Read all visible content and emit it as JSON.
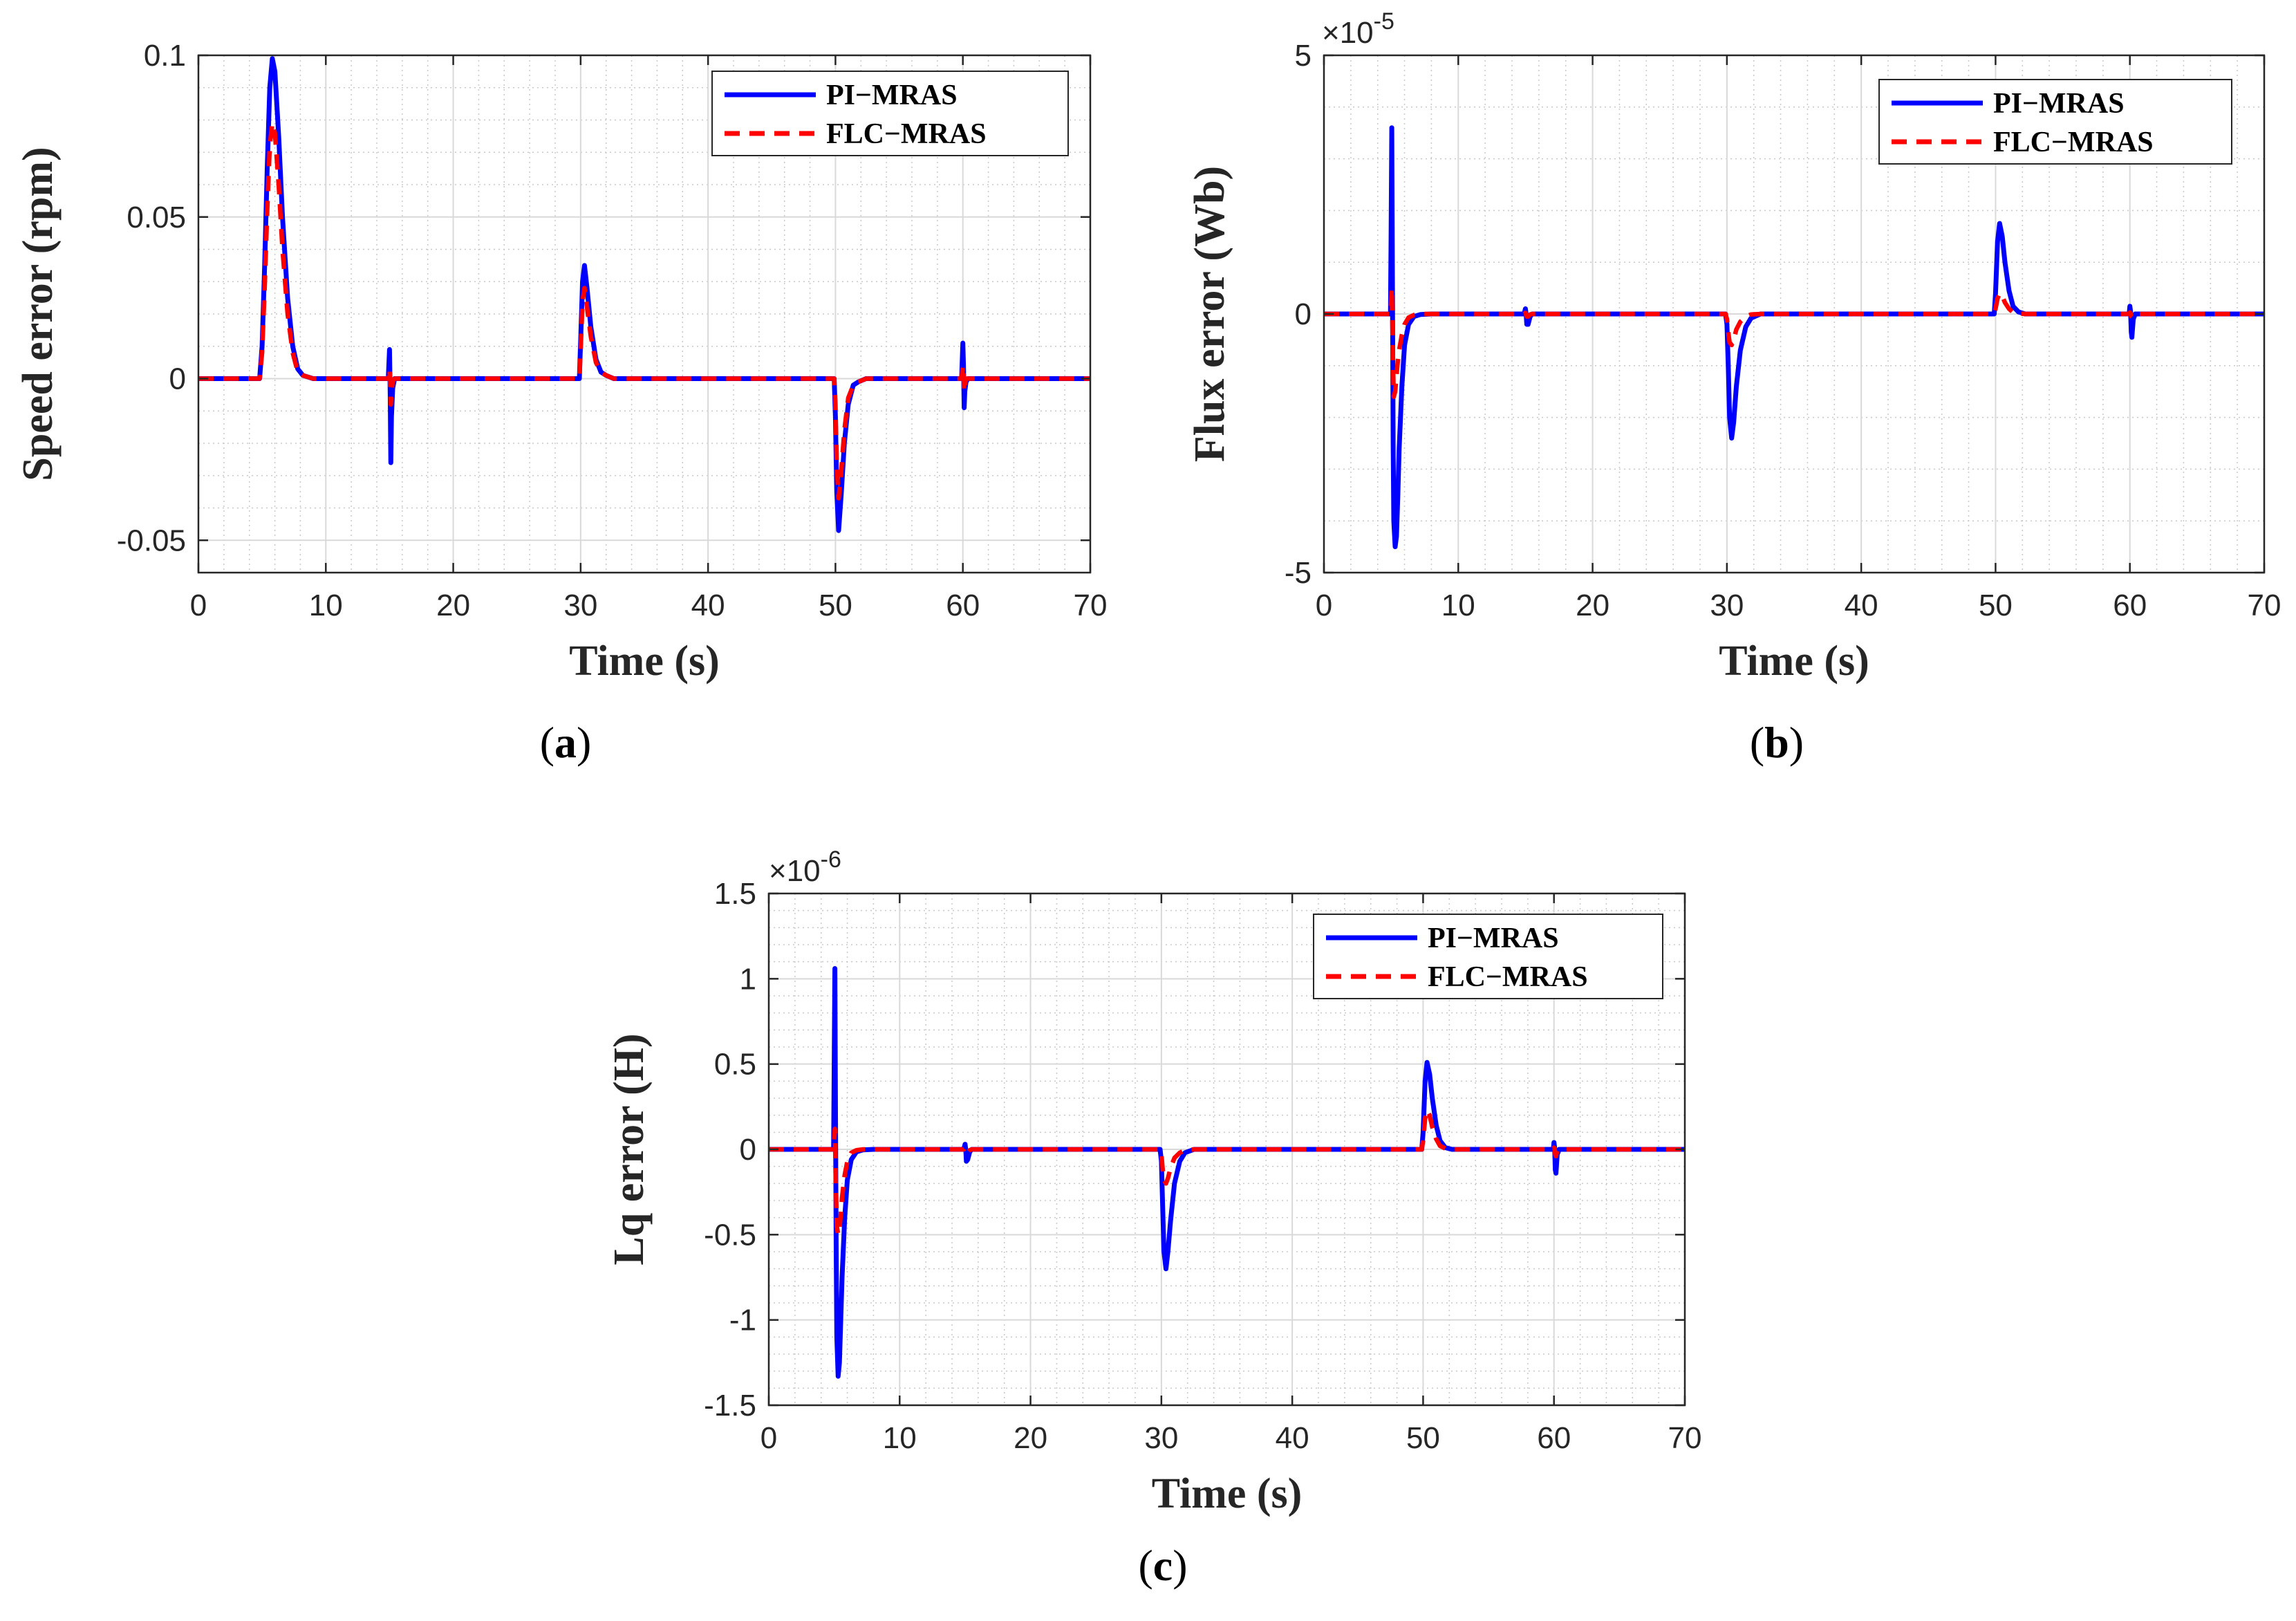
{
  "colors": {
    "pi_mras": "#0000ff",
    "flc_mras": "#ff0000",
    "axis": "#262626",
    "grid": "#c8c8c8"
  },
  "chart_data": [
    {
      "id": "a",
      "type": "line",
      "caption_letter": "a",
      "xlabel": "Time (s)",
      "ylabel": "Speed error (rpm)",
      "exponent_label": "",
      "xlim": [
        0,
        70
      ],
      "ylim": [
        -0.06,
        0.1
      ],
      "xticks": [
        0,
        10,
        20,
        30,
        40,
        50,
        60,
        70
      ],
      "xtick_labels": [
        "0",
        "10",
        "20",
        "30",
        "40",
        "50",
        "60",
        "70"
      ],
      "yticks": [
        -0.05,
        0,
        0.05,
        0.1
      ],
      "ytick_labels": [
        "-0.05",
        "0",
        "0.05",
        "0.1"
      ],
      "legend": [
        "PI−MRAS",
        "FLC−MRAS"
      ],
      "legend_position": "top-right",
      "series": [
        {
          "name": "PI-MRAS",
          "style": "solid",
          "x": [
            0,
            4.8,
            5.0,
            5.2,
            5.4,
            5.6,
            5.8,
            6.0,
            6.3,
            6.6,
            7.0,
            7.4,
            7.8,
            8.2,
            9.0,
            14.9,
            15.0,
            15.05,
            15.1,
            15.15,
            15.25,
            15.4,
            29.9,
            30.0,
            30.15,
            30.3,
            30.5,
            30.8,
            31.2,
            31.6,
            32.0,
            32.6,
            49.9,
            50.0,
            50.1,
            50.25,
            50.45,
            50.7,
            51.0,
            51.4,
            51.8,
            52.4,
            59.9,
            60.0,
            60.05,
            60.1,
            60.15,
            60.25,
            60.4,
            70
          ],
          "y": [
            0,
            0,
            0.01,
            0.035,
            0.065,
            0.09,
            0.099,
            0.095,
            0.075,
            0.05,
            0.025,
            0.01,
            0.003,
            0.001,
            0,
            0,
            0.009,
            -0.005,
            -0.026,
            -0.012,
            -0.003,
            0,
            0,
            0.012,
            0.03,
            0.035,
            0.028,
            0.016,
            0.006,
            0.002,
            0.001,
            0,
            0,
            -0.012,
            -0.035,
            -0.047,
            -0.036,
            -0.02,
            -0.008,
            -0.002,
            -0.001,
            0,
            0,
            0.011,
            0.004,
            -0.009,
            -0.004,
            -0.001,
            0,
            0
          ]
        },
        {
          "name": "FLC-MRAS",
          "style": "dashed",
          "x": [
            0,
            4.8,
            5.0,
            5.2,
            5.4,
            5.6,
            5.8,
            6.0,
            6.3,
            6.6,
            7.0,
            7.4,
            7.8,
            8.2,
            9.0,
            14.9,
            15.0,
            15.05,
            15.1,
            15.15,
            15.25,
            15.4,
            29.9,
            30.0,
            30.15,
            30.3,
            30.5,
            30.8,
            31.2,
            31.6,
            32.0,
            32.6,
            49.9,
            50.0,
            50.1,
            50.25,
            50.45,
            50.7,
            51.0,
            51.4,
            51.8,
            52.4,
            59.9,
            60.0,
            60.05,
            60.1,
            60.15,
            60.25,
            60.4,
            70
          ],
          "y": [
            0,
            0,
            0.008,
            0.028,
            0.052,
            0.072,
            0.079,
            0.076,
            0.06,
            0.04,
            0.02,
            0.008,
            0.002,
            0.001,
            0,
            0,
            0.003,
            -0.002,
            -0.008,
            -0.004,
            -0.001,
            0,
            0,
            0.009,
            0.024,
            0.028,
            0.022,
            0.013,
            0.005,
            0.002,
            0.001,
            0,
            0,
            -0.008,
            -0.027,
            -0.037,
            -0.029,
            -0.016,
            -0.006,
            -0.002,
            -0.001,
            0,
            0,
            0.004,
            0.001,
            -0.004,
            -0.002,
            0,
            0,
            0
          ]
        }
      ]
    },
    {
      "id": "b",
      "type": "line",
      "caption_letter": "b",
      "xlabel": "Time (s)",
      "ylabel": "Flux error (Wb)",
      "exponent_label": "×10",
      "exponent_power": "-5",
      "xlim": [
        0,
        70
      ],
      "ylim": [
        -5,
        5
      ],
      "xticks": [
        0,
        10,
        20,
        30,
        40,
        50,
        60,
        70
      ],
      "xtick_labels": [
        "0",
        "10",
        "20",
        "30",
        "40",
        "50",
        "60",
        "70"
      ],
      "yticks": [
        -5,
        0,
        5
      ],
      "ytick_labels": [
        "-5",
        "0",
        "5"
      ],
      "legend": [
        "PI−MRAS",
        "FLC−MRAS"
      ],
      "legend_position": "top-right",
      "series": [
        {
          "name": "PI-MRAS",
          "style": "solid",
          "x": [
            0,
            4.95,
            5.0,
            5.05,
            5.1,
            5.15,
            5.2,
            5.3,
            5.4,
            5.5,
            5.6,
            5.8,
            6.0,
            6.3,
            6.7,
            7.2,
            8.0,
            14.9,
            15.0,
            15.05,
            15.1,
            15.2,
            15.35,
            15.5,
            29.9,
            30.0,
            30.1,
            30.2,
            30.35,
            30.5,
            30.7,
            31.0,
            31.4,
            31.8,
            32.5,
            49.9,
            50.0,
            50.15,
            50.3,
            50.5,
            50.7,
            51.0,
            51.3,
            51.7,
            52.2,
            59.95,
            60.0,
            60.05,
            60.1,
            60.15,
            60.25,
            60.4,
            70
          ],
          "y": [
            0,
            0,
            1.5,
            3.6,
            0.5,
            -2.5,
            -4.0,
            -4.5,
            -4.3,
            -3.5,
            -2.6,
            -1.4,
            -0.6,
            -0.2,
            -0.05,
            -0.01,
            0,
            0,
            0.1,
            0,
            -0.2,
            -0.2,
            -0.05,
            0,
            0,
            -0.2,
            -1.0,
            -2.0,
            -2.4,
            -2.1,
            -1.4,
            -0.7,
            -0.25,
            -0.08,
            0,
            0,
            0.4,
            1.4,
            1.75,
            1.5,
            1.0,
            0.45,
            0.15,
            0.04,
            0,
            0,
            0.15,
            0.05,
            -0.35,
            -0.45,
            -0.1,
            0,
            0
          ]
        },
        {
          "name": "FLC-MRAS",
          "style": "dashed",
          "x": [
            0,
            4.95,
            5.0,
            5.05,
            5.1,
            5.15,
            5.2,
            5.3,
            5.4,
            5.5,
            5.6,
            5.8,
            6.0,
            6.3,
            6.7,
            7.2,
            8.0,
            14.9,
            15.0,
            15.05,
            15.1,
            15.2,
            15.35,
            15.5,
            29.9,
            30.0,
            30.1,
            30.2,
            30.35,
            30.5,
            30.7,
            31.0,
            31.4,
            31.8,
            32.5,
            49.9,
            50.0,
            50.15,
            50.3,
            50.5,
            50.7,
            51.0,
            51.3,
            51.7,
            52.2,
            59.95,
            60.0,
            60.05,
            60.1,
            60.15,
            60.25,
            60.4,
            70
          ],
          "y": [
            0,
            0,
            0.2,
            0.5,
            -0.3,
            -1.1,
            -1.6,
            -1.5,
            -1.2,
            -0.9,
            -0.7,
            -0.4,
            -0.2,
            -0.07,
            -0.02,
            0,
            0,
            0,
            0.02,
            0,
            -0.05,
            -0.05,
            -0.01,
            0,
            0,
            -0.1,
            -0.35,
            -0.55,
            -0.6,
            -0.5,
            -0.3,
            -0.15,
            -0.05,
            -0.01,
            0,
            0,
            0.1,
            0.3,
            0.4,
            0.35,
            0.22,
            0.1,
            0.03,
            0.01,
            0,
            0,
            0.03,
            0.01,
            -0.05,
            -0.06,
            -0.01,
            0,
            0
          ]
        }
      ]
    },
    {
      "id": "c",
      "type": "line",
      "caption_letter": "c",
      "xlabel": "Time (s)",
      "ylabel": "Lq error (H)",
      "exponent_label": "×10",
      "exponent_power": "-6",
      "xlim": [
        0,
        70
      ],
      "ylim": [
        -1.5,
        1.5
      ],
      "xticks": [
        0,
        10,
        20,
        30,
        40,
        50,
        60,
        70
      ],
      "xtick_labels": [
        "0",
        "10",
        "20",
        "30",
        "40",
        "50",
        "60",
        "70"
      ],
      "yticks": [
        -1.5,
        -1,
        -0.5,
        0,
        0.5,
        1,
        1.5
      ],
      "ytick_labels": [
        "-1.5",
        "-1",
        "-0.5",
        "0",
        "0.5",
        "1",
        "1.5"
      ],
      "legend": [
        "PI−MRAS",
        "FLC−MRAS"
      ],
      "legend_position": "top-right",
      "series": [
        {
          "name": "PI-MRAS",
          "style": "solid",
          "x": [
            0,
            4.95,
            5.0,
            5.05,
            5.1,
            5.15,
            5.2,
            5.3,
            5.4,
            5.5,
            5.6,
            5.8,
            6.0,
            6.3,
            6.7,
            7.2,
            8.0,
            14.9,
            15.0,
            15.05,
            15.1,
            15.2,
            15.35,
            15.5,
            29.9,
            30.0,
            30.1,
            30.2,
            30.35,
            30.5,
            30.7,
            31.0,
            31.4,
            31.8,
            32.5,
            49.9,
            50.0,
            50.15,
            50.3,
            50.5,
            50.7,
            51.0,
            51.3,
            51.7,
            52.2,
            59.95,
            60.0,
            60.05,
            60.1,
            60.15,
            60.25,
            60.4,
            70
          ],
          "y": [
            0,
            0,
            0.5,
            1.06,
            0.2,
            -0.6,
            -1.1,
            -1.33,
            -1.25,
            -1.0,
            -0.75,
            -0.4,
            -0.18,
            -0.06,
            -0.015,
            -0.003,
            0,
            0,
            0.03,
            0,
            -0.07,
            -0.06,
            -0.015,
            0,
            0,
            -0.07,
            -0.35,
            -0.6,
            -0.7,
            -0.6,
            -0.42,
            -0.2,
            -0.07,
            -0.02,
            0,
            0,
            0.1,
            0.4,
            0.51,
            0.44,
            0.3,
            0.14,
            0.05,
            0.01,
            0,
            0,
            0.04,
            0.01,
            -0.12,
            -0.14,
            -0.03,
            0,
            0
          ]
        },
        {
          "name": "FLC-MRAS",
          "style": "dashed",
          "x": [
            0,
            4.95,
            5.0,
            5.05,
            5.1,
            5.15,
            5.2,
            5.3,
            5.4,
            5.5,
            5.6,
            5.8,
            6.0,
            6.3,
            6.7,
            7.2,
            8.0,
            14.9,
            15.0,
            15.05,
            15.1,
            15.2,
            15.35,
            15.5,
            29.9,
            30.0,
            30.1,
            30.2,
            30.35,
            30.5,
            30.7,
            31.0,
            31.4,
            31.8,
            32.5,
            49.9,
            50.0,
            50.15,
            50.3,
            50.5,
            50.7,
            51.0,
            51.3,
            51.7,
            52.2,
            59.95,
            60.0,
            60.05,
            60.1,
            60.15,
            60.25,
            60.4,
            70
          ],
          "y": [
            0,
            0,
            0.05,
            0.12,
            -0.1,
            -0.3,
            -0.45,
            -0.5,
            -0.47,
            -0.38,
            -0.28,
            -0.15,
            -0.07,
            -0.02,
            -0.005,
            0,
            0,
            0,
            0.01,
            0,
            -0.02,
            -0.02,
            -0.005,
            0,
            0,
            -0.03,
            -0.12,
            -0.18,
            -0.2,
            -0.17,
            -0.11,
            -0.05,
            -0.02,
            -0.005,
            0,
            0,
            0.05,
            0.18,
            0.23,
            0.2,
            0.13,
            0.06,
            0.02,
            0.005,
            0,
            0,
            0.01,
            0.003,
            -0.03,
            -0.04,
            -0.01,
            0,
            0
          ]
        }
      ]
    }
  ]
}
